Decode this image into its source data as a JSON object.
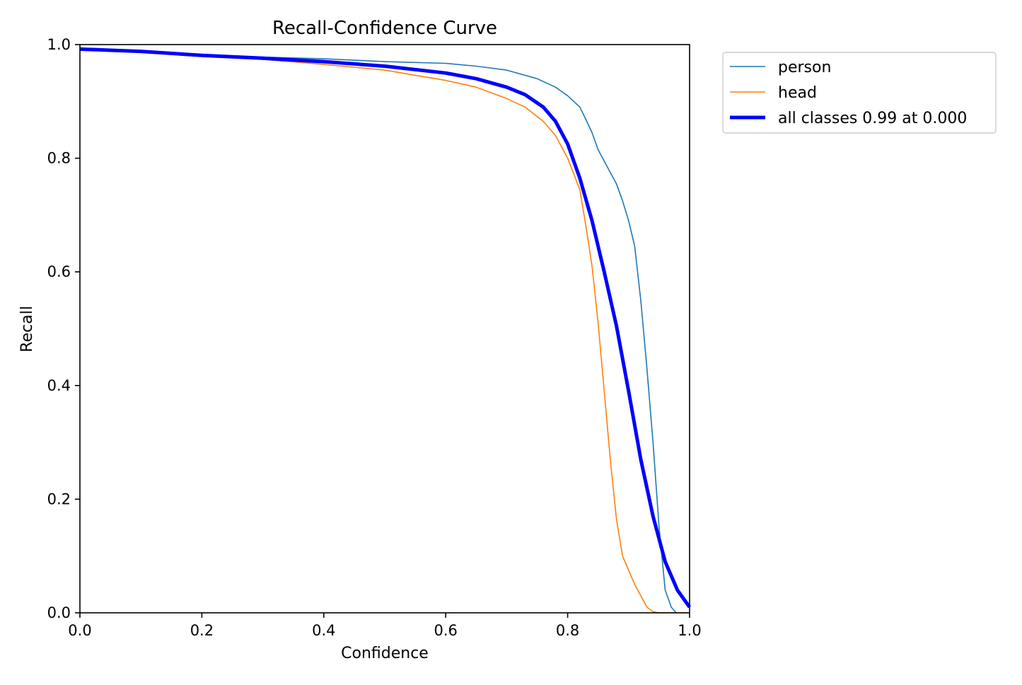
{
  "chart_data": {
    "type": "line",
    "title": "Recall-Confidence Curve",
    "xlabel": "Confidence",
    "ylabel": "Recall",
    "xlim": [
      0.0,
      1.0
    ],
    "ylim": [
      0.0,
      1.0
    ],
    "grid": false,
    "legend_position": "outside-top-right",
    "x_ticks": [
      "0.0",
      "0.2",
      "0.4",
      "0.6",
      "0.8",
      "1.0"
    ],
    "y_ticks": [
      "0.0",
      "0.2",
      "0.4",
      "0.6",
      "0.8",
      "1.0"
    ],
    "series": [
      {
        "name": "person",
        "color": "#1f77b4",
        "width": 1.6,
        "points": [
          [
            0.0,
            0.992
          ],
          [
            0.1,
            0.988
          ],
          [
            0.2,
            0.982
          ],
          [
            0.3,
            0.978
          ],
          [
            0.4,
            0.975
          ],
          [
            0.5,
            0.97
          ],
          [
            0.6,
            0.967
          ],
          [
            0.65,
            0.962
          ],
          [
            0.7,
            0.955
          ],
          [
            0.75,
            0.94
          ],
          [
            0.78,
            0.925
          ],
          [
            0.8,
            0.91
          ],
          [
            0.82,
            0.89
          ],
          [
            0.83,
            0.868
          ],
          [
            0.84,
            0.845
          ],
          [
            0.85,
            0.815
          ],
          [
            0.86,
            0.795
          ],
          [
            0.87,
            0.775
          ],
          [
            0.88,
            0.755
          ],
          [
            0.89,
            0.725
          ],
          [
            0.9,
            0.69
          ],
          [
            0.91,
            0.645
          ],
          [
            0.92,
            0.55
          ],
          [
            0.93,
            0.43
          ],
          [
            0.94,
            0.3
          ],
          [
            0.95,
            0.15
          ],
          [
            0.96,
            0.04
          ],
          [
            0.97,
            0.01
          ],
          [
            0.978,
            0.0
          ]
        ]
      },
      {
        "name": "head",
        "color": "#ff7f0e",
        "width": 1.6,
        "points": [
          [
            0.0,
            0.992
          ],
          [
            0.1,
            0.988
          ],
          [
            0.2,
            0.981
          ],
          [
            0.3,
            0.974
          ],
          [
            0.4,
            0.965
          ],
          [
            0.5,
            0.955
          ],
          [
            0.55,
            0.946
          ],
          [
            0.6,
            0.937
          ],
          [
            0.65,
            0.925
          ],
          [
            0.7,
            0.905
          ],
          [
            0.73,
            0.89
          ],
          [
            0.76,
            0.865
          ],
          [
            0.78,
            0.84
          ],
          [
            0.8,
            0.8
          ],
          [
            0.82,
            0.745
          ],
          [
            0.83,
            0.68
          ],
          [
            0.84,
            0.61
          ],
          [
            0.85,
            0.51
          ],
          [
            0.86,
            0.39
          ],
          [
            0.87,
            0.27
          ],
          [
            0.88,
            0.165
          ],
          [
            0.89,
            0.1
          ],
          [
            0.9,
            0.075
          ],
          [
            0.91,
            0.05
          ],
          [
            0.92,
            0.03
          ],
          [
            0.93,
            0.01
          ],
          [
            0.94,
            0.002
          ],
          [
            0.95,
            0.0
          ],
          [
            1.0,
            0.0
          ]
        ]
      },
      {
        "name": "all classes 0.99 at 0.000",
        "color": "#0000ff",
        "width": 5,
        "points": [
          [
            0.0,
            0.992
          ],
          [
            0.1,
            0.988
          ],
          [
            0.2,
            0.981
          ],
          [
            0.3,
            0.976
          ],
          [
            0.4,
            0.97
          ],
          [
            0.5,
            0.962
          ],
          [
            0.6,
            0.95
          ],
          [
            0.65,
            0.94
          ],
          [
            0.7,
            0.925
          ],
          [
            0.73,
            0.912
          ],
          [
            0.76,
            0.89
          ],
          [
            0.78,
            0.865
          ],
          [
            0.8,
            0.825
          ],
          [
            0.82,
            0.765
          ],
          [
            0.84,
            0.69
          ],
          [
            0.86,
            0.6
          ],
          [
            0.88,
            0.505
          ],
          [
            0.9,
            0.39
          ],
          [
            0.92,
            0.27
          ],
          [
            0.94,
            0.17
          ],
          [
            0.96,
            0.09
          ],
          [
            0.98,
            0.04
          ],
          [
            1.0,
            0.01
          ]
        ]
      }
    ]
  }
}
